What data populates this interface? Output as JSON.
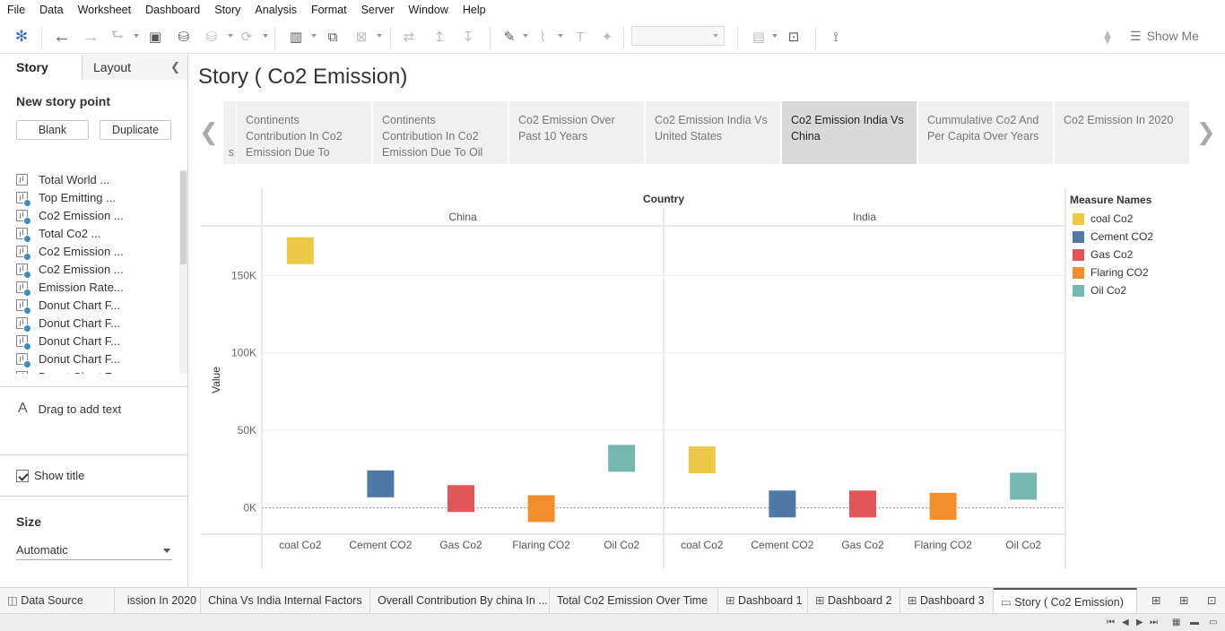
{
  "menu": [
    "File",
    "Data",
    "Worksheet",
    "Dashboard",
    "Story",
    "Analysis",
    "Format",
    "Server",
    "Window",
    "Help"
  ],
  "toolbar": {
    "show_me_label": "Show Me",
    "colors": {
      "icon": "#555555",
      "disabled": "#bbbbbb"
    }
  },
  "left_pane": {
    "tab_story": "Story",
    "tab_layout": "Layout",
    "new_story_point": "New story point",
    "blank_label": "Blank",
    "duplicate_label": "Duplicate",
    "sheets": [
      {
        "label": "Total World ...",
        "used": false
      },
      {
        "label": "Top Emitting ...",
        "used": true
      },
      {
        "label": "Co2 Emission ...",
        "used": true
      },
      {
        "label": "Total Co2 ...",
        "used": true
      },
      {
        "label": "Co2 Emission ...",
        "used": true
      },
      {
        "label": "Co2 Emission ...",
        "used": true
      },
      {
        "label": "Emission Rate...",
        "used": true
      },
      {
        "label": "Donut Chart F...",
        "used": true
      },
      {
        "label": "Donut Chart F...",
        "used": true
      },
      {
        "label": "Donut Chart F...",
        "used": true
      },
      {
        "label": "Donut Chart F...",
        "used": true
      },
      {
        "label": "Donut Chart F...",
        "used": true
      }
    ],
    "drag_text": "Drag to add text",
    "show_title_label": "Show title",
    "size_heading": "Size",
    "size_value": "Automatic"
  },
  "story": {
    "title": "Story ( Co2 Emission)",
    "points": [
      {
        "label": "s",
        "active": false
      },
      {
        "label": "Continents Contribution In Co2 Emission Due To",
        "active": false
      },
      {
        "label": "Continents Contribution In Co2 Emission Due To Oil",
        "active": false
      },
      {
        "label": "Co2 Emission Over Past 10 Years",
        "active": false
      },
      {
        "label": "Co2 Emission India Vs United States",
        "active": false
      },
      {
        "label": "Co2 Emission India Vs China",
        "active": true
      },
      {
        "label": "Cummulative Co2 And Per Capita Over Years",
        "active": false
      },
      {
        "label": "Co2 Emission In 2020",
        "active": false
      }
    ]
  },
  "chart_data": {
    "type": "scatter",
    "column_header": "Country",
    "panels": [
      "China",
      "India"
    ],
    "categories": [
      "coal Co2",
      "Cement CO2",
      "Gas Co2",
      "Flaring CO2",
      "Oil Co2"
    ],
    "ylabel": "Value",
    "ylim": [
      -17000,
      182000
    ],
    "yticks": [
      0,
      50000,
      100000,
      150000
    ],
    "ytick_labels": [
      "0K",
      "50K",
      "100K",
      "150K"
    ],
    "series": [
      {
        "name": "China",
        "values": [
          166000,
          15500,
          6000,
          -500,
          32000
        ]
      },
      {
        "name": "India",
        "values": [
          31000,
          2500,
          2500,
          1000,
          14000
        ]
      }
    ],
    "legend_title": "Measure Names",
    "legend": [
      {
        "name": "coal Co2",
        "color": "#EDC948"
      },
      {
        "name": "Cement CO2",
        "color": "#4E79A7"
      },
      {
        "name": "Gas Co2",
        "color": "#E15759"
      },
      {
        "name": "Flaring CO2",
        "color": "#F28E2B"
      },
      {
        "name": "Oil Co2",
        "color": "#76B7B2"
      }
    ],
    "legend_placement": "right",
    "grid": true
  },
  "bottom_tabs": [
    {
      "label": "Data Source",
      "icon": "database-icon",
      "active": false
    },
    {
      "label": "ission In 2020",
      "icon": "",
      "active": false
    },
    {
      "label": "China Vs India Internal Factors",
      "icon": "",
      "active": false
    },
    {
      "label": "Overall Contribution By china In ...",
      "icon": "",
      "active": false
    },
    {
      "label": "Total Co2 Emission Over Time",
      "icon": "",
      "active": false
    },
    {
      "label": "Dashboard 1",
      "icon": "dashboard-icon",
      "active": false
    },
    {
      "label": "Dashboard 2",
      "icon": "dashboard-icon",
      "active": false
    },
    {
      "label": "Dashboard 3",
      "icon": "dashboard-icon",
      "active": false
    },
    {
      "label": "Story ( Co2 Emission)",
      "icon": "story-icon",
      "active": true
    }
  ]
}
